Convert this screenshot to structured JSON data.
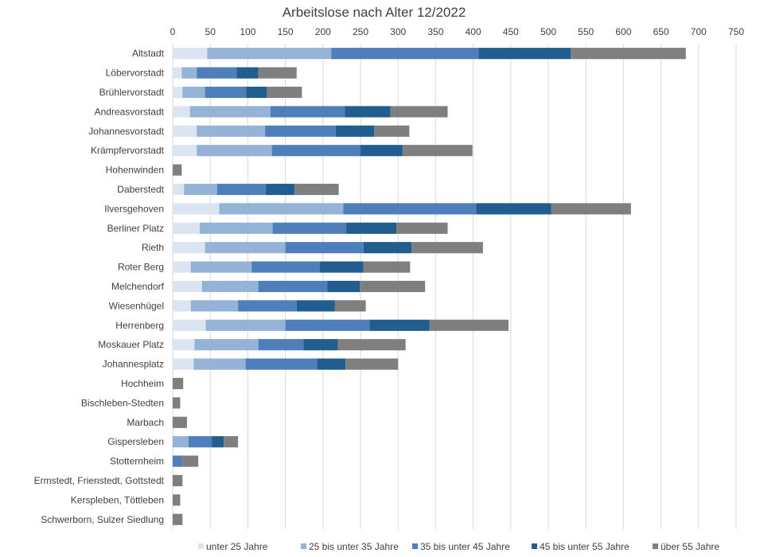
{
  "chart_data": {
    "type": "bar",
    "orientation": "horizontal",
    "stacked": true,
    "title": "Arbeitslose nach Alter 12/2022",
    "xlim": [
      0,
      750
    ],
    "x_ticks": [
      0,
      50,
      100,
      150,
      200,
      250,
      300,
      350,
      400,
      450,
      500,
      550,
      600,
      650,
      700,
      750
    ],
    "x_tick_labels": [
      "0",
      "50",
      "100",
      "150",
      "200",
      "250",
      "300",
      "350",
      "400",
      "450",
      "500",
      "550",
      "600",
      "650",
      "700",
      "750"
    ],
    "grid": true,
    "legend_position": "bottom",
    "categories": [
      "Altstadt",
      "Löbervorstadt",
      "Brühlervorstadt",
      "Andreasvorstadt",
      "Johannesvorstadt",
      "Krämpfervorstadt",
      "Hohenwinden",
      "Daberstedt",
      "Ilversgehoven",
      "Berliner Platz",
      "Rieth",
      "Roter Berg",
      "Melchendorf",
      "Wiesenhügel",
      "Herrenberg",
      "Moskauer Platz",
      "Johannesplatz",
      "Hochheim",
      "Bischleben-Stedten",
      "Marbach",
      "Gispersleben",
      "Stotternheim",
      "Ermstedt, Frienstedt, Gottstedt",
      "Kerspleben, Töttleben",
      "Schwerborn, Sulzer Siedlung"
    ],
    "series": [
      {
        "name": "unter 25 Jahre",
        "color": "#dbe5f1",
        "values": [
          46,
          12,
          13,
          23,
          32,
          32,
          0,
          15,
          62,
          36,
          43,
          24,
          39,
          24,
          44,
          29,
          28,
          0,
          0,
          0,
          0,
          0,
          0,
          0,
          0
        ]
      },
      {
        "name": "25 bis unter 35 Jahre",
        "color": "#95b3d7",
        "values": [
          165,
          20,
          30,
          107,
          91,
          100,
          0,
          44,
          165,
          97,
          107,
          81,
          75,
          63,
          106,
          85,
          69,
          0,
          0,
          0,
          21,
          0,
          0,
          0,
          0
        ]
      },
      {
        "name": "35 bis unter 45 Jahre",
        "color": "#4f7fba",
        "values": [
          196,
          53,
          55,
          99,
          94,
          118,
          0,
          65,
          177,
          98,
          104,
          91,
          92,
          78,
          112,
          60,
          95,
          0,
          0,
          0,
          31,
          13,
          0,
          0,
          0
        ]
      },
      {
        "name": "45 bis unter 55 Jahre",
        "color": "#215d8f",
        "values": [
          123,
          29,
          27,
          61,
          51,
          56,
          0,
          38,
          100,
          67,
          64,
          58,
          43,
          51,
          80,
          46,
          38,
          0,
          0,
          0,
          16,
          0,
          0,
          0,
          0
        ]
      },
      {
        "name": "über 55 Jahre",
        "color": "#7f7f7f",
        "values": [
          153,
          51,
          47,
          76,
          47,
          93,
          12,
          59,
          106,
          68,
          95,
          62,
          87,
          41,
          105,
          90,
          70,
          14,
          10,
          19,
          19,
          21,
          13,
          10,
          13
        ]
      }
    ]
  }
}
